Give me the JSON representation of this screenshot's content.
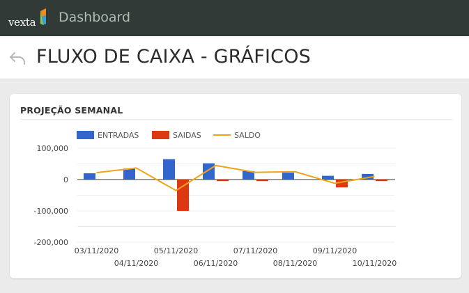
{
  "app": {
    "logo_text": "vexta",
    "title": "Dashboard"
  },
  "page": {
    "title": "FLUXO DE CAIXA - GRÁFICOS"
  },
  "card": {
    "title": "PROJEÇÃO SEMANAL"
  },
  "colors": {
    "entradas": "#3366cc",
    "saidas": "#dc3912",
    "saldo": "#f1a21b"
  },
  "chart_data": {
    "type": "bar",
    "categories": [
      "03/11/2020",
      "04/11/2020",
      "05/11/2020",
      "06/11/2020",
      "07/11/2020",
      "08/11/2020",
      "09/11/2020",
      "10/11/2020"
    ],
    "series": [
      {
        "name": "ENTRADAS",
        "type": "bar",
        "values": [
          20000,
          35000,
          65000,
          52000,
          27000,
          22000,
          12000,
          18000
        ]
      },
      {
        "name": "SAIDAS",
        "type": "bar",
        "values": [
          0,
          0,
          -100000,
          -5000,
          -5000,
          0,
          -25000,
          -5000
        ]
      },
      {
        "name": "SALDO",
        "type": "line",
        "values": [
          22000,
          37000,
          -35000,
          45000,
          23000,
          25000,
          -12000,
          10000
        ]
      }
    ],
    "y_ticks": [
      100000,
      0,
      -100000,
      -200000
    ],
    "y_tick_labels": [
      "100,000",
      "0",
      "-100,000",
      "-200,000"
    ],
    "ylim": [
      -200000,
      100000
    ],
    "legend_position": "top-left",
    "grid": true
  }
}
